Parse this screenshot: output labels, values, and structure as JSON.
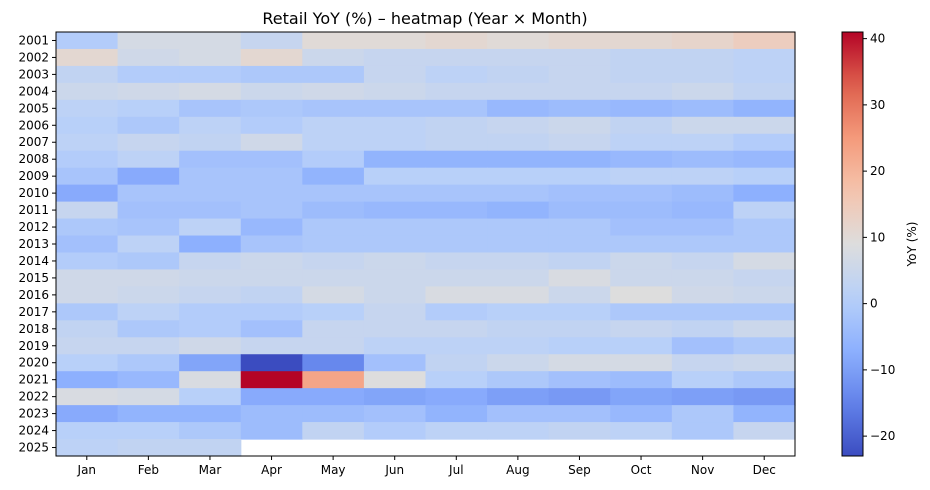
{
  "chart_data": {
    "type": "heatmap",
    "title": "Retail YoY (%) – heatmap (Year × Month)",
    "xlabel": "",
    "ylabel": "",
    "colorbar_label": "YoY (%)",
    "colormap": "coolwarm",
    "vmin": -23,
    "vmax": 41,
    "colorbar_ticks": [
      -20,
      -10,
      0,
      10,
      20,
      30,
      40
    ],
    "colorbar_tick_labels": [
      "−20",
      "−10",
      "0",
      "10",
      "20",
      "30",
      "40"
    ],
    "x_categories": [
      "Jan",
      "Feb",
      "Mar",
      "Apr",
      "May",
      "Jun",
      "Jul",
      "Aug",
      "Sep",
      "Oct",
      "Nov",
      "Dec"
    ],
    "y_categories": [
      "2001",
      "2002",
      "2003",
      "2004",
      "2005",
      "2006",
      "2007",
      "2008",
      "2009",
      "2010",
      "2011",
      "2012",
      "2013",
      "2014",
      "2015",
      "2016",
      "2017",
      "2018",
      "2019",
      "2020",
      "2021",
      "2022",
      "2023",
      "2024",
      "2025"
    ],
    "values": [
      [
        0,
        7,
        7,
        4,
        10,
        10,
        11,
        10,
        11,
        11,
        12,
        14
      ],
      [
        11,
        6,
        7,
        11,
        5,
        4,
        4,
        4,
        4,
        3,
        3,
        2
      ],
      [
        3,
        0,
        0,
        -1,
        -1,
        4,
        2,
        3,
        4,
        3,
        3,
        2
      ],
      [
        5,
        6,
        7,
        5,
        6,
        5,
        4,
        4,
        4,
        4,
        5,
        3
      ],
      [
        2,
        1,
        -2,
        -1,
        -2,
        -2,
        -2,
        -5,
        -4,
        -5,
        -4,
        -6
      ],
      [
        1,
        -1,
        2,
        0,
        2,
        2,
        3,
        4,
        5,
        3,
        5,
        5
      ],
      [
        2,
        4,
        3,
        6,
        2,
        2,
        3,
        3,
        4,
        2,
        2,
        0
      ],
      [
        0,
        2,
        -3,
        -3,
        0,
        -6,
        -6,
        -6,
        -6,
        -5,
        -4,
        -5
      ],
      [
        -2,
        -8,
        -2,
        -2,
        -6,
        1,
        1,
        1,
        1,
        2,
        2,
        1
      ],
      [
        -8,
        -2,
        -2,
        -2,
        -2,
        -2,
        -2,
        -2,
        -3,
        -3,
        -4,
        -7
      ],
      [
        4,
        -3,
        -3,
        -2,
        -4,
        -5,
        -5,
        -6,
        -4,
        -4,
        -5,
        2
      ],
      [
        -1,
        -2,
        2,
        -5,
        -1,
        -1,
        -1,
        -1,
        -1,
        -3,
        -3,
        -1
      ],
      [
        -3,
        2,
        -7,
        -2,
        -1,
        -1,
        -1,
        -1,
        -1,
        -1,
        -1,
        -1
      ],
      [
        0,
        -1,
        4,
        5,
        4,
        5,
        4,
        4,
        3,
        5,
        4,
        7
      ],
      [
        6,
        6,
        5,
        5,
        5,
        5,
        5,
        5,
        8,
        5,
        5,
        4
      ],
      [
        6,
        5,
        4,
        3,
        7,
        5,
        8,
        8,
        5,
        9,
        6,
        5
      ],
      [
        -1,
        2,
        0,
        0,
        1,
        4,
        0,
        1,
        1,
        -1,
        -1,
        -1
      ],
      [
        3,
        -1,
        0,
        -3,
        4,
        4,
        4,
        3,
        3,
        4,
        3,
        5
      ],
      [
        4,
        4,
        6,
        4,
        4,
        2,
        2,
        2,
        1,
        1,
        -3,
        -1
      ],
      [
        1,
        -1,
        -9,
        -23,
        -14,
        -3,
        3,
        5,
        7,
        7,
        4,
        5
      ],
      [
        -7,
        -5,
        8,
        41,
        23,
        9,
        1,
        -1,
        -3,
        -4,
        1,
        -1
      ],
      [
        8,
        7,
        1,
        -8,
        -8,
        -9,
        -8,
        -10,
        -11,
        -9,
        -10,
        -11
      ],
      [
        -8,
        -6,
        -6,
        -4,
        -4,
        -3,
        -6,
        -3,
        -3,
        -5,
        -1,
        -6
      ],
      [
        1,
        1,
        -1,
        -4,
        3,
        0,
        2,
        2,
        3,
        2,
        -1,
        4
      ],
      [
        2,
        3,
        3,
        null,
        null,
        null,
        null,
        null,
        null,
        null,
        null,
        null
      ]
    ]
  }
}
